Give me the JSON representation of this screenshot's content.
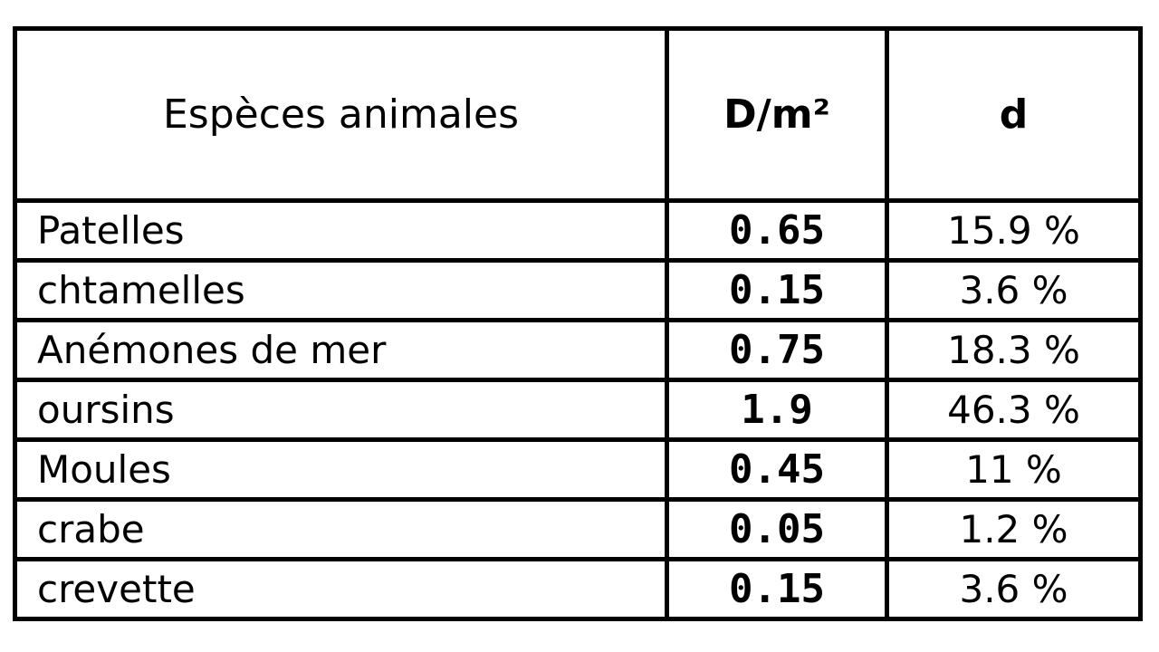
{
  "table": {
    "headers": [
      "Espèces animales",
      "D/m²",
      "d"
    ],
    "rows": [
      {
        "species": "Patelles",
        "density": "0.65",
        "dominance": "15.9 %"
      },
      {
        "species": "chtamelles",
        "density": "0.15",
        "dominance": "3.6 %"
      },
      {
        "species": "Anémones de mer",
        "density": "0.75",
        "dominance": "18.3 %"
      },
      {
        "species": "oursins",
        "density": "1.9",
        "dominance": "46.3 %"
      },
      {
        "species": "Moules",
        "density": "0.45",
        "dominance": "11 %"
      },
      {
        "species": "crabe",
        "density": "0.05",
        "dominance": "1.2 %"
      },
      {
        "species": "crevette",
        "density": "0.15",
        "dominance": "3.6 %"
      }
    ]
  }
}
